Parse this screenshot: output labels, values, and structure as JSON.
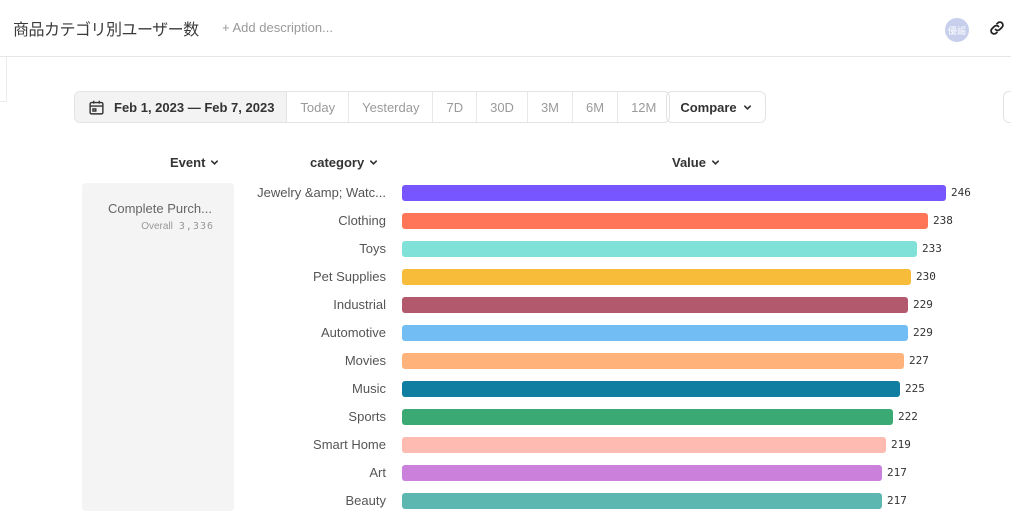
{
  "header": {
    "title": "商品カテゴリ別ユーザー数",
    "add_description": "+ Add description...",
    "avatar_initials": "優謡"
  },
  "date_controls": {
    "range_label": "Feb 1, 2023 — Feb 7, 2023",
    "presets": [
      "Today",
      "Yesterday",
      "7D",
      "30D",
      "3M",
      "6M",
      "12M"
    ],
    "compare_label": "Compare"
  },
  "columns": {
    "event": "Event",
    "category": "category",
    "value": "Value"
  },
  "event": {
    "name": "Complete Purch...",
    "overall_label": "Overall",
    "overall_value": "3,336"
  },
  "chart_data": {
    "type": "bar",
    "orientation": "horizontal",
    "title": "商品カテゴリ別ユーザー数",
    "xlabel": "Value",
    "ylabel": "category",
    "categories": [
      "Jewelry &amp; Watc...",
      "Clothing",
      "Toys",
      "Pet Supplies",
      "Industrial",
      "Automotive",
      "Movies",
      "Music",
      "Sports",
      "Smart Home",
      "Art",
      "Beauty"
    ],
    "values": [
      246,
      238,
      233,
      230,
      229,
      229,
      227,
      225,
      222,
      219,
      217,
      217
    ],
    "colors": [
      "#7856ff",
      "#ff7557",
      "#80e1d9",
      "#f8bc3b",
      "#b2596e",
      "#72bef4",
      "#ffb27a",
      "#0f7ea0",
      "#3ba974",
      "#febbb2",
      "#cb80dc",
      "#5bb7af"
    ],
    "xlim": [
      0,
      246
    ],
    "grid": false,
    "legend": "none"
  }
}
